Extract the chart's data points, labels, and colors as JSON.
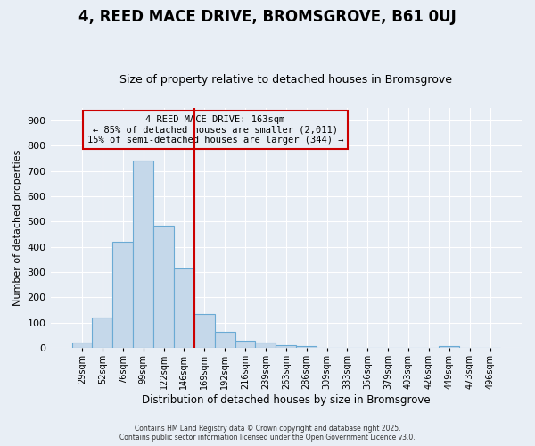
{
  "title": "4, REED MACE DRIVE, BROMSGROVE, B61 0UJ",
  "subtitle": "Size of property relative to detached houses in Bromsgrove",
  "xlabel": "Distribution of detached houses by size in Bromsgrove",
  "ylabel": "Number of detached properties",
  "bar_color": "#c5d8ea",
  "bar_edge_color": "#6aaad4",
  "background_color": "#e8eef5",
  "grid_color": "#ffffff",
  "vline_color": "#cc0000",
  "annotation_box_color": "#cc0000",
  "annotation_text": "4 REED MACE DRIVE: 163sqm\n← 85% of detached houses are smaller (2,011)\n15% of semi-detached houses are larger (344) →",
  "categories": [
    "29sqm",
    "52sqm",
    "76sqm",
    "99sqm",
    "122sqm",
    "146sqm",
    "169sqm",
    "192sqm",
    "216sqm",
    "239sqm",
    "263sqm",
    "286sqm",
    "309sqm",
    "333sqm",
    "356sqm",
    "379sqm",
    "403sqm",
    "426sqm",
    "449sqm",
    "473sqm",
    "496sqm"
  ],
  "values": [
    22,
    122,
    420,
    740,
    483,
    316,
    133,
    65,
    30,
    20,
    12,
    8,
    0,
    0,
    0,
    0,
    0,
    0,
    8,
    0,
    0
  ],
  "vline_x": 6.0,
  "ylim": [
    0,
    950
  ],
  "yticks": [
    0,
    100,
    200,
    300,
    400,
    500,
    600,
    700,
    800,
    900
  ],
  "figsize": [
    6.0,
    5.0
  ],
  "dpi": 100,
  "title_fontsize": 12,
  "subtitle_fontsize": 9,
  "footer_text": "Contains HM Land Registry data © Crown copyright and database right 2025.\nContains public sector information licensed under the Open Government Licence v3.0."
}
